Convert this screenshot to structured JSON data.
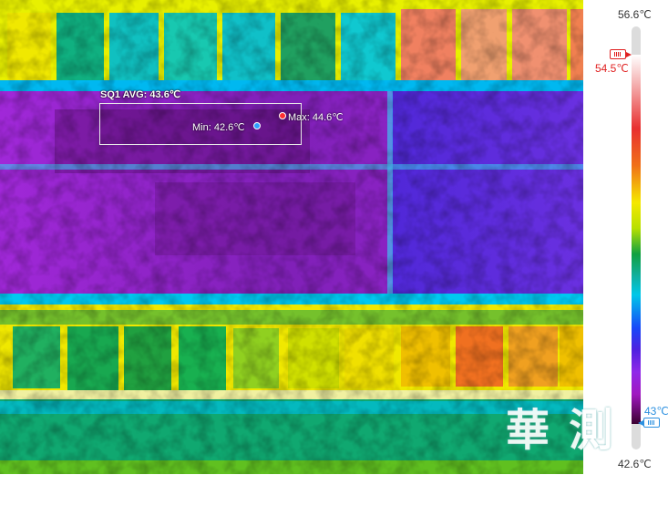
{
  "measurement": {
    "roi_label": "SQ1 AVG: 43.6℃",
    "min_label": "Min: 42.6℃",
    "max_label": "Max: 44.6℃"
  },
  "watermark": "華 測",
  "scale": {
    "max_label": "56.6℃",
    "min_label": "42.6℃",
    "upper_threshold_label": "54.5℃",
    "lower_threshold_label": "43℃",
    "upper_color": "#e02020",
    "lower_color": "#2b90e0"
  },
  "icons": {
    "upper_handle": "slider-handle-icon",
    "lower_handle": "slider-handle-icon"
  }
}
